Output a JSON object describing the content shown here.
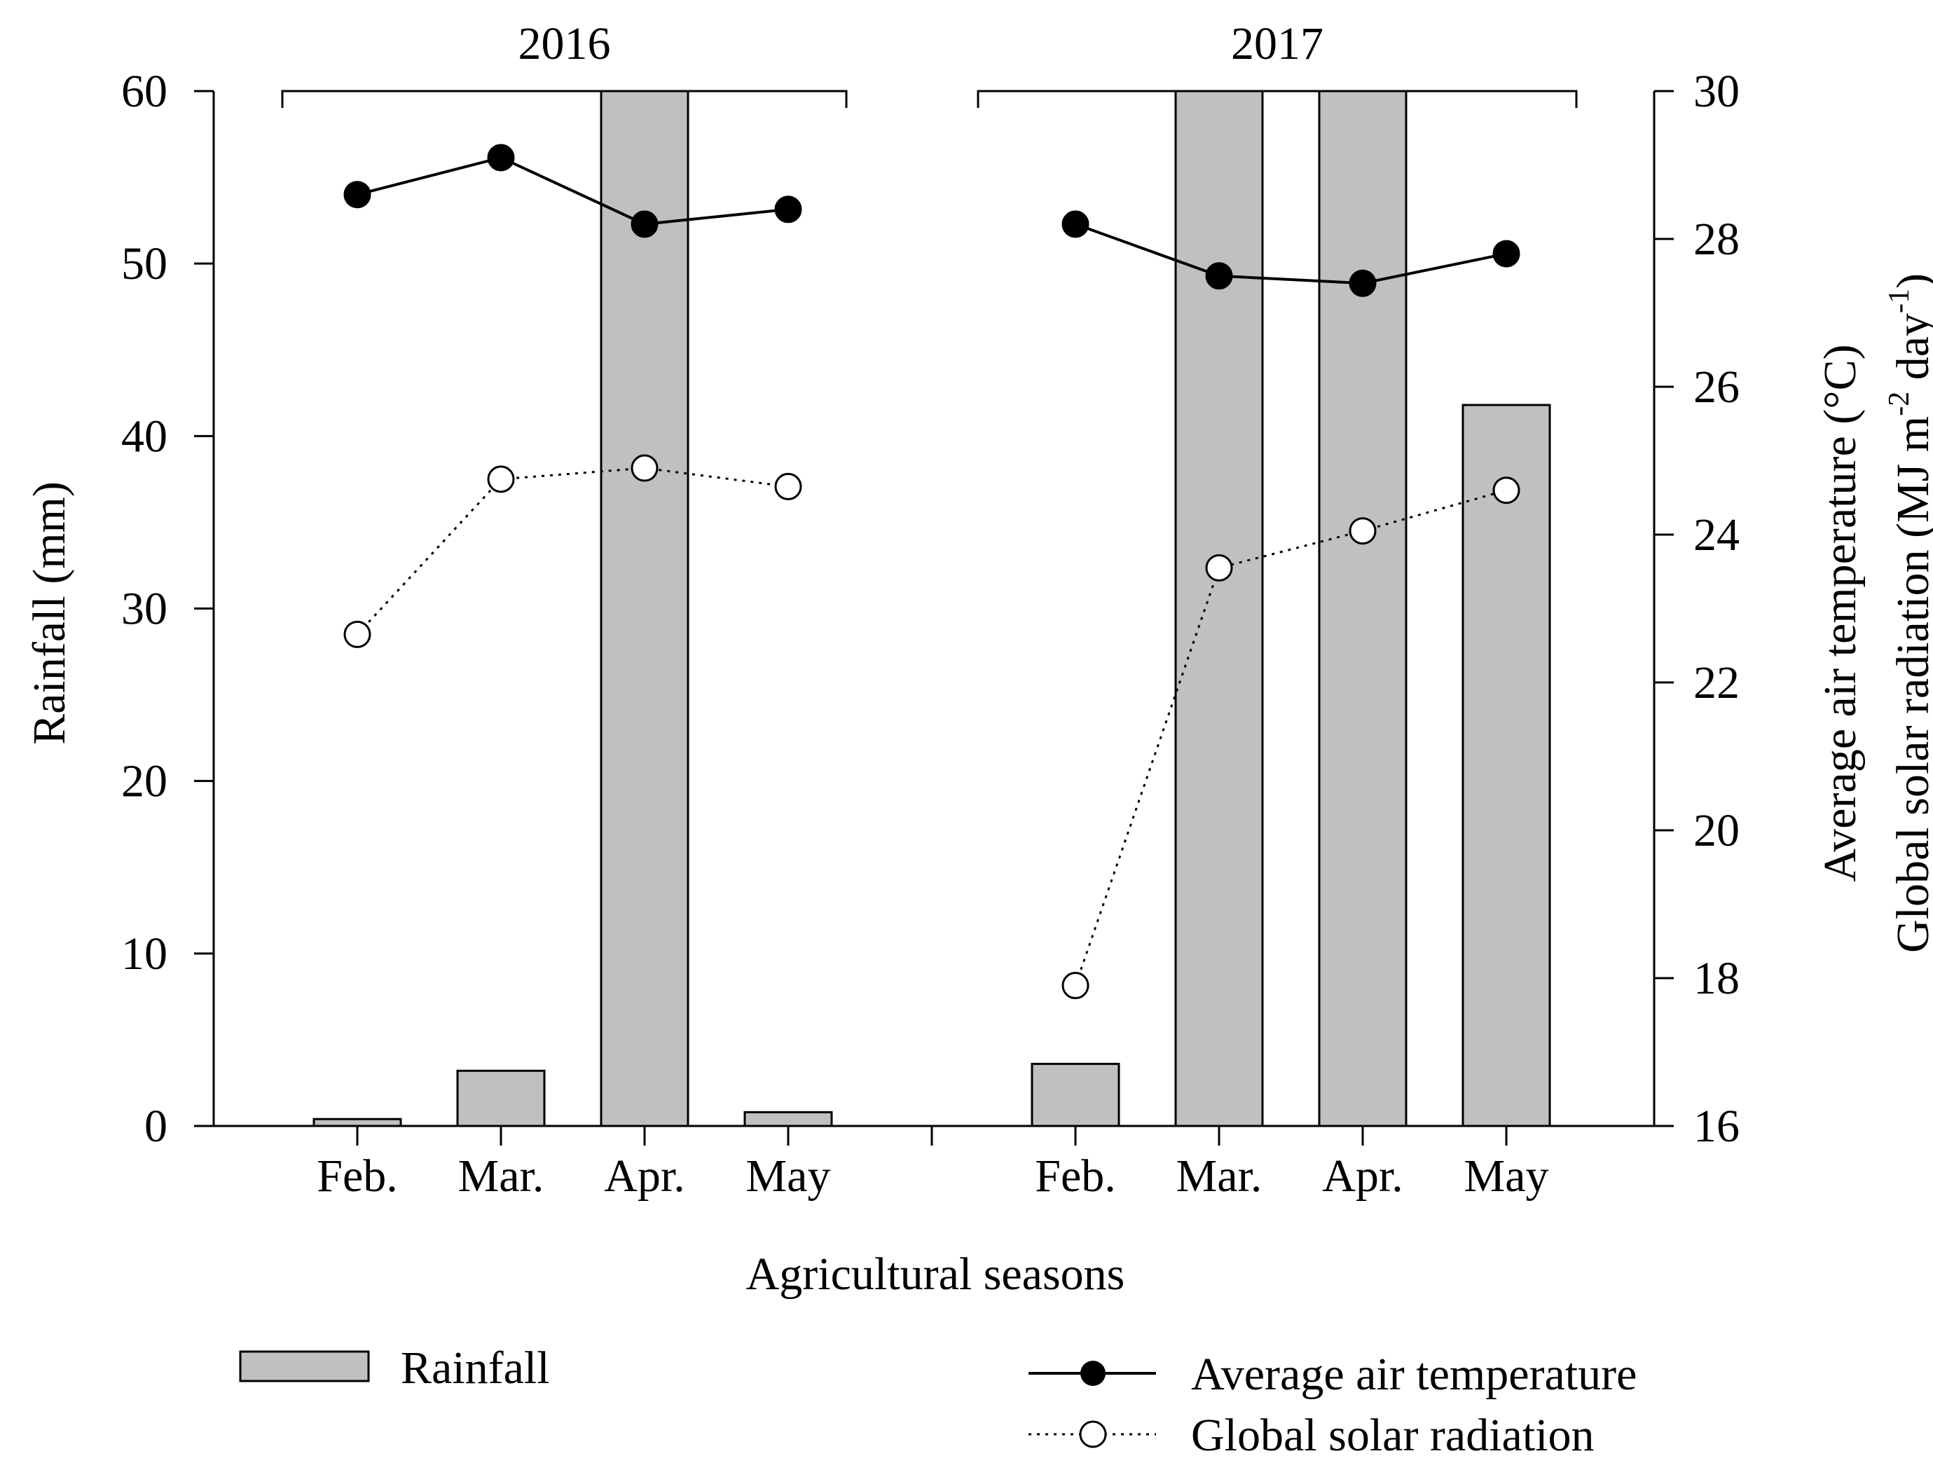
{
  "chart_data": {
    "type": "bar+line",
    "title": "",
    "xlabel": "Agricultural seasons",
    "ylabel_left": "Rainfall (mm)",
    "ylabel_right_line1": "Average air temperature (°C)",
    "ylabel_right_line2_base": "Global solar radiation (MJ m",
    "ylabel_right_line2_sup1": "-2",
    "ylabel_right_line2_mid": " day",
    "ylabel_right_line2_sup2": "-1",
    "ylabel_right_line2_end": ")",
    "ylim_left": [
      0,
      60
    ],
    "ylim_right": [
      16,
      30
    ],
    "left_ticks": [
      0,
      10,
      20,
      30,
      40,
      50,
      60
    ],
    "right_ticks": [
      16,
      18,
      20,
      22,
      24,
      26,
      28,
      30
    ],
    "groups": [
      {
        "year": "2016",
        "months": [
          "Feb.",
          "Mar.",
          "Apr.",
          "May"
        ]
      },
      {
        "year": "2017",
        "months": [
          "Feb.",
          "Mar.",
          "Apr.",
          "May"
        ]
      }
    ],
    "series": [
      {
        "name": "Rainfall",
        "axis": "left",
        "type": "bar",
        "color": "#c0c0c0",
        "values": [
          0.4,
          3.2,
          60,
          0.8,
          3.6,
          60,
          60,
          41.8
        ]
      },
      {
        "name": "Average air temperature",
        "axis": "right",
        "type": "line",
        "style": "solid",
        "marker": "filled-circle",
        "values": [
          28.6,
          29.1,
          28.2,
          28.4,
          28.2,
          27.5,
          27.4,
          27.8
        ]
      },
      {
        "name": "Global solar radiation",
        "axis": "right",
        "type": "line",
        "style": "dotted",
        "marker": "open-circle",
        "values": [
          22.65,
          24.75,
          24.9,
          24.65,
          17.9,
          23.55,
          24.05,
          24.6
        ]
      }
    ],
    "legend": {
      "rainfall": "Rainfall",
      "temperature": "Average air temperature",
      "radiation": "Global solar radiation"
    }
  }
}
